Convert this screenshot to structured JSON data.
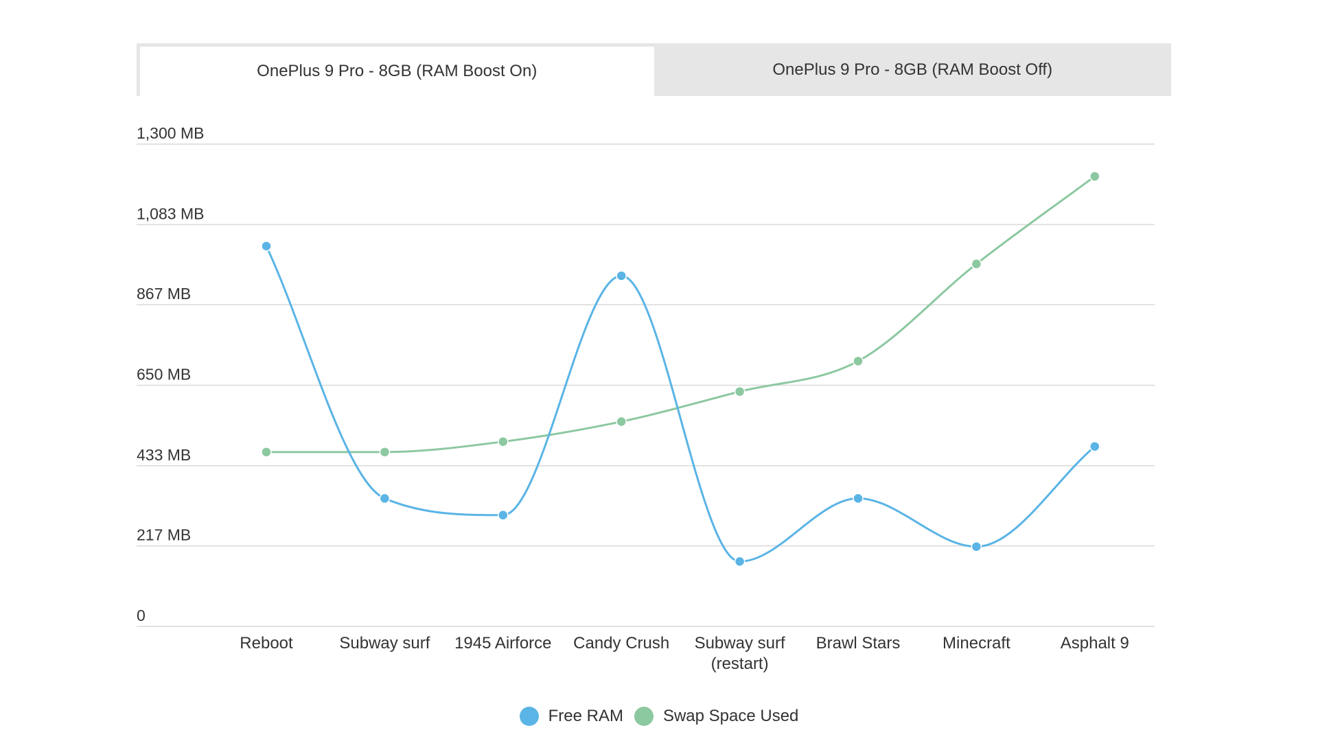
{
  "tabs": [
    {
      "label": "OnePlus 9 Pro - 8GB (RAM Boost On)",
      "active": true
    },
    {
      "label": "OnePlus 9 Pro - 8GB (RAM Boost Off)",
      "active": false
    }
  ],
  "colors": {
    "free_ram": "#5ab4e5",
    "swap_space": "#8cc8a0",
    "grid": "#d9d9d9",
    "axis_text": "#333333"
  },
  "chart_data": {
    "type": "line",
    "title": "",
    "xlabel": "",
    "ylabel": "",
    "ylim": [
      0,
      1300
    ],
    "y_ticks": [
      {
        "value": 0,
        "label": "0"
      },
      {
        "value": 217,
        "label": "217 MB"
      },
      {
        "value": 433,
        "label": "433 MB"
      },
      {
        "value": 650,
        "label": "650 MB"
      },
      {
        "value": 867,
        "label": "867 MB"
      },
      {
        "value": 1083,
        "label": "1,083 MB"
      },
      {
        "value": 1300,
        "label": "1,300 MB"
      }
    ],
    "categories": [
      [
        "Reboot"
      ],
      [
        "Subway surf"
      ],
      [
        "1945 Airforce"
      ],
      [
        "Candy Crush"
      ],
      [
        "Subway surf",
        "(restart)"
      ],
      [
        "Brawl Stars"
      ],
      [
        "Minecraft"
      ],
      [
        "Asphalt 9"
      ]
    ],
    "series": [
      {
        "name": "Free RAM",
        "color": "#5ab4e5",
        "values": [
          1025,
          345,
          300,
          945,
          175,
          345,
          215,
          485
        ]
      },
      {
        "name": "Swap Space Used",
        "color": "#8cc8a0",
        "values": [
          470,
          470,
          498,
          552,
          633,
          715,
          977,
          1213
        ]
      }
    ],
    "grid": true,
    "legend_position": "bottom-center"
  }
}
